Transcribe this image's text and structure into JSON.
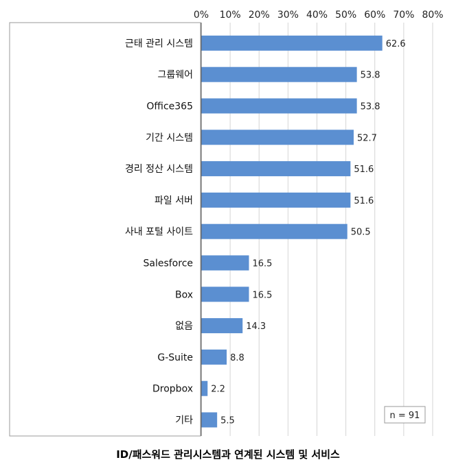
{
  "caption": "ID/패스워드 관리시스템과 연계된 시스템 및 서비스",
  "n_label": "n = 91",
  "colors": {
    "bar": "#5b8fd1",
    "grid": "#d4d4d4",
    "axis": "#555555"
  },
  "chart_data": {
    "type": "bar",
    "orientation": "horizontal",
    "categories": [
      "근태 관리 시스템",
      "그룹웨어",
      "Office365",
      "기간 시스템",
      "경리 정산 시스템",
      "파일 서버",
      "사내 포털 사이트",
      "Salesforce",
      "Box",
      "없음",
      "G-Suite",
      "Dropbox",
      "기타"
    ],
    "values": [
      62.6,
      53.8,
      53.8,
      52.7,
      51.6,
      51.6,
      50.5,
      16.5,
      16.5,
      14.3,
      8.8,
      2.2,
      5.5
    ],
    "value_labels": [
      "62.6",
      "53.8",
      "53.8",
      "52.7",
      "51.6",
      "51.6",
      "50.5",
      "16.5",
      "16.5",
      "14.3",
      "8.8",
      "2.2",
      "5.5"
    ],
    "xlim": [
      0,
      80
    ],
    "xticks": [
      "0%",
      "10%",
      "20%",
      "30%",
      "40%",
      "50%",
      "60%",
      "70%",
      "80%"
    ],
    "tick_values": [
      0,
      10,
      20,
      30,
      40,
      50,
      60,
      70,
      80
    ],
    "x_axis_position": "top",
    "grid": true,
    "title": "ID/패스워드 관리시스템과 연계된 시스템 및 서비스"
  }
}
